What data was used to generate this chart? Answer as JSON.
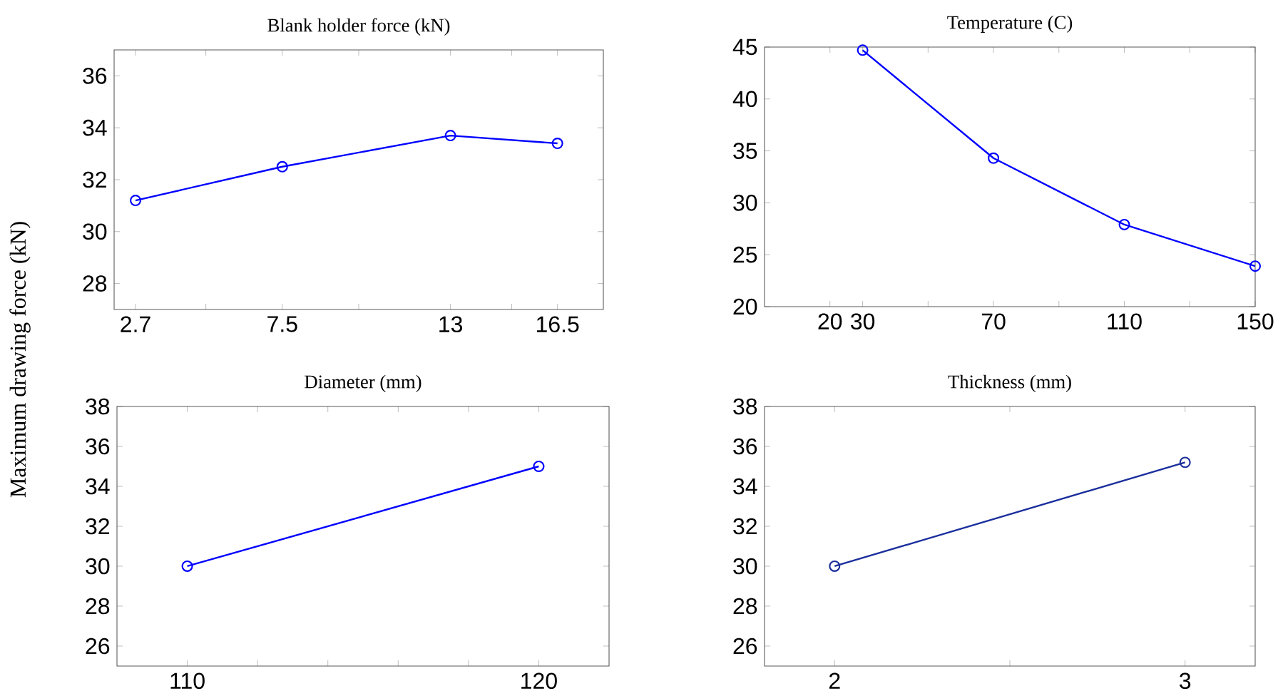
{
  "chart_data": [
    {
      "type": "line",
      "title": "Blank holder force (kN)",
      "ylabel": "Maximum drawing force (kN)",
      "x": [
        2.7,
        7.5,
        13,
        16.5
      ],
      "series": [
        {
          "color": "#0000ff",
          "values": [
            31.2,
            32.5,
            33.7,
            33.4
          ]
        }
      ],
      "xlim": [
        2,
        18
      ],
      "xticks": [
        2.7,
        {
          "value": 5,
          "label": null
        },
        7.5,
        {
          "value": 10,
          "label": null
        },
        13,
        {
          "value": 15,
          "label": null
        },
        16.5
      ],
      "ylim": [
        27,
        37
      ],
      "yticks": [
        28,
        30,
        32,
        34,
        36
      ],
      "marker": "circle",
      "line_style": "solid"
    },
    {
      "type": "line",
      "title": "Temperature (C)",
      "x": [
        30,
        70,
        110,
        150
      ],
      "series": [
        {
          "color": "#0000ff",
          "values": [
            44.7,
            34.3,
            27.9,
            23.9
          ]
        }
      ],
      "xlim": [
        0,
        150
      ],
      "xticks": [
        20,
        30,
        {
          "value": 50,
          "label": null
        },
        70,
        {
          "value": 90,
          "label": null
        },
        110,
        {
          "value": 130,
          "label": null
        },
        150
      ],
      "ylim": [
        20,
        45
      ],
      "yticks": [
        20,
        25,
        30,
        35,
        40,
        45
      ],
      "marker": "circle",
      "line_style": "solid"
    },
    {
      "type": "line",
      "title": "Diameter (mm)",
      "x": [
        110,
        120
      ],
      "series": [
        {
          "color": "#0000ff",
          "values": [
            30,
            35
          ]
        }
      ],
      "xlim": [
        108,
        122
      ],
      "xticks": [
        110,
        {
          "value": 112,
          "label": null
        },
        {
          "value": 114,
          "label": null
        },
        {
          "value": 116,
          "label": null
        },
        {
          "value": 118,
          "label": null
        },
        120
      ],
      "ylim": [
        25,
        38
      ],
      "yticks": [
        26,
        28,
        30,
        32,
        34,
        36,
        38
      ],
      "marker": "circle",
      "line_style": "solid"
    },
    {
      "type": "line",
      "title": "Thickness (mm)",
      "x": [
        2,
        3
      ],
      "series": [
        {
          "color": "#1a2e9c",
          "values": [
            30,
            35.2
          ]
        }
      ],
      "xlim": [
        1.8,
        3.2
      ],
      "xticks": [
        2,
        {
          "value": 2.5,
          "label": null
        },
        3
      ],
      "ylim": [
        25,
        38
      ],
      "yticks": [
        26,
        28,
        30,
        32,
        34,
        36,
        38
      ],
      "marker": "circle",
      "line_style": "solid"
    }
  ]
}
